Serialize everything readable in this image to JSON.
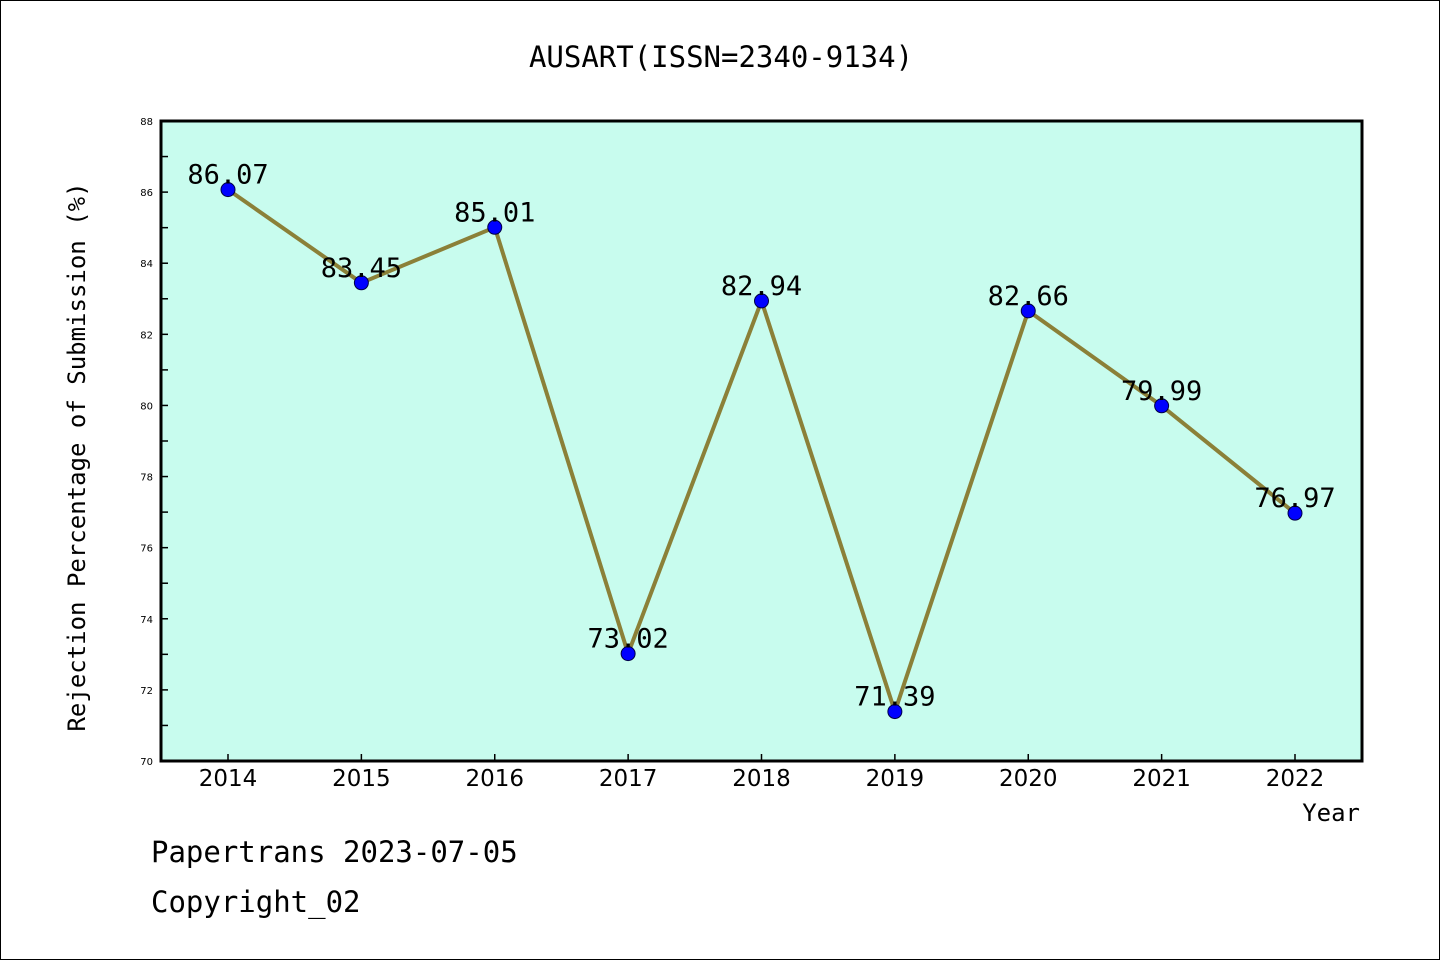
{
  "chart_data": {
    "type": "line",
    "title": "AUSART(ISSN=2340-9134)",
    "xlabel": "Year",
    "ylabel": "Rejection Percentage of Submission (%)",
    "categories": [
      "2014",
      "2015",
      "2016",
      "2017",
      "2018",
      "2019",
      "2020",
      "2021",
      "2022"
    ],
    "values": [
      86.07,
      83.45,
      85.01,
      73.02,
      82.94,
      71.39,
      82.66,
      79.99,
      76.97
    ],
    "data_labels": [
      "86.07",
      "83.45",
      "85.01",
      "73.02",
      "82.94",
      "71.39",
      "82.66",
      "79.99",
      "76.97"
    ],
    "ylim": [
      70,
      88
    ],
    "yticks": [
      "70",
      "72",
      "74",
      "76",
      "78",
      "80",
      "82",
      "84",
      "86",
      "88"
    ],
    "grid": false,
    "colors": {
      "plot_background": "#c8fcee",
      "line": "#8b8038",
      "marker": "#0000ff"
    }
  },
  "footer": {
    "line1": "Papertrans 2023-07-05",
    "line2": "Copyright_02"
  }
}
